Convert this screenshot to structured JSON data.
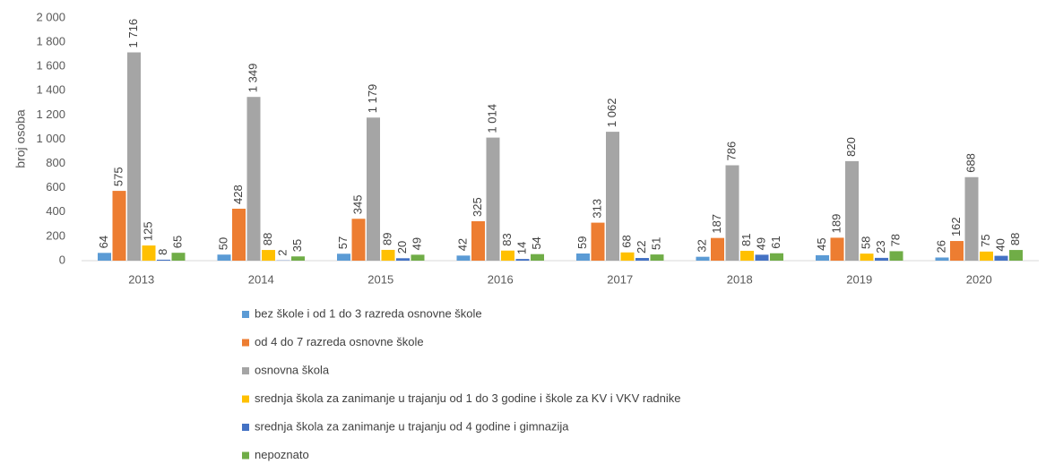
{
  "chart_data": {
    "type": "bar",
    "y_label": "broj osoba",
    "categories": [
      "2013",
      "2014",
      "2015",
      "2016",
      "2017",
      "2018",
      "2019",
      "2020"
    ],
    "series": [
      {
        "name": "bez škole i od 1 do 3 razreda osnovne škole",
        "color": "#5b9bd5",
        "values": [
          64,
          50,
          57,
          42,
          59,
          32,
          45,
          26
        ]
      },
      {
        "name": "od 4 do 7 razreda osnovne škole",
        "color": "#ed7d31",
        "values": [
          575,
          428,
          345,
          325,
          313,
          187,
          189,
          162
        ]
      },
      {
        "name": "osnovna škola",
        "color": "#a5a5a5",
        "values": [
          1716,
          1349,
          1179,
          1014,
          1062,
          786,
          820,
          688
        ],
        "value_labels": [
          "1 716",
          "1 349",
          "1 179",
          "1 014",
          "1 062",
          "786",
          "820",
          "688"
        ]
      },
      {
        "name": "srednja škola za zanimanje u trajanju od 1 do 3 godine i škole za KV i VKV radnike",
        "color": "#ffc000",
        "values": [
          125,
          88,
          89,
          83,
          68,
          81,
          58,
          75
        ]
      },
      {
        "name": "srednja škola za zanimanje u trajanju od 4 godine i gimnazija",
        "color": "#4472c4",
        "values": [
          8,
          2,
          20,
          14,
          22,
          49,
          23,
          40
        ]
      },
      {
        "name": "nepoznato",
        "color": "#70ad47",
        "values": [
          65,
          35,
          49,
          54,
          51,
          61,
          78,
          88
        ]
      }
    ],
    "ylim": [
      0,
      2000
    ],
    "yticks": [
      0,
      200,
      400,
      600,
      800,
      {
        "value": 1000,
        "label": "1 000"
      },
      {
        "value": 1200,
        "label": "1 200"
      },
      {
        "value": 1400,
        "label": "1 400"
      },
      {
        "value": 1600,
        "label": "1 600"
      },
      {
        "value": 1800,
        "label": "1 800"
      },
      {
        "value": 2000,
        "label": "2 000"
      }
    ],
    "grid": false,
    "legend": "bottom"
  }
}
